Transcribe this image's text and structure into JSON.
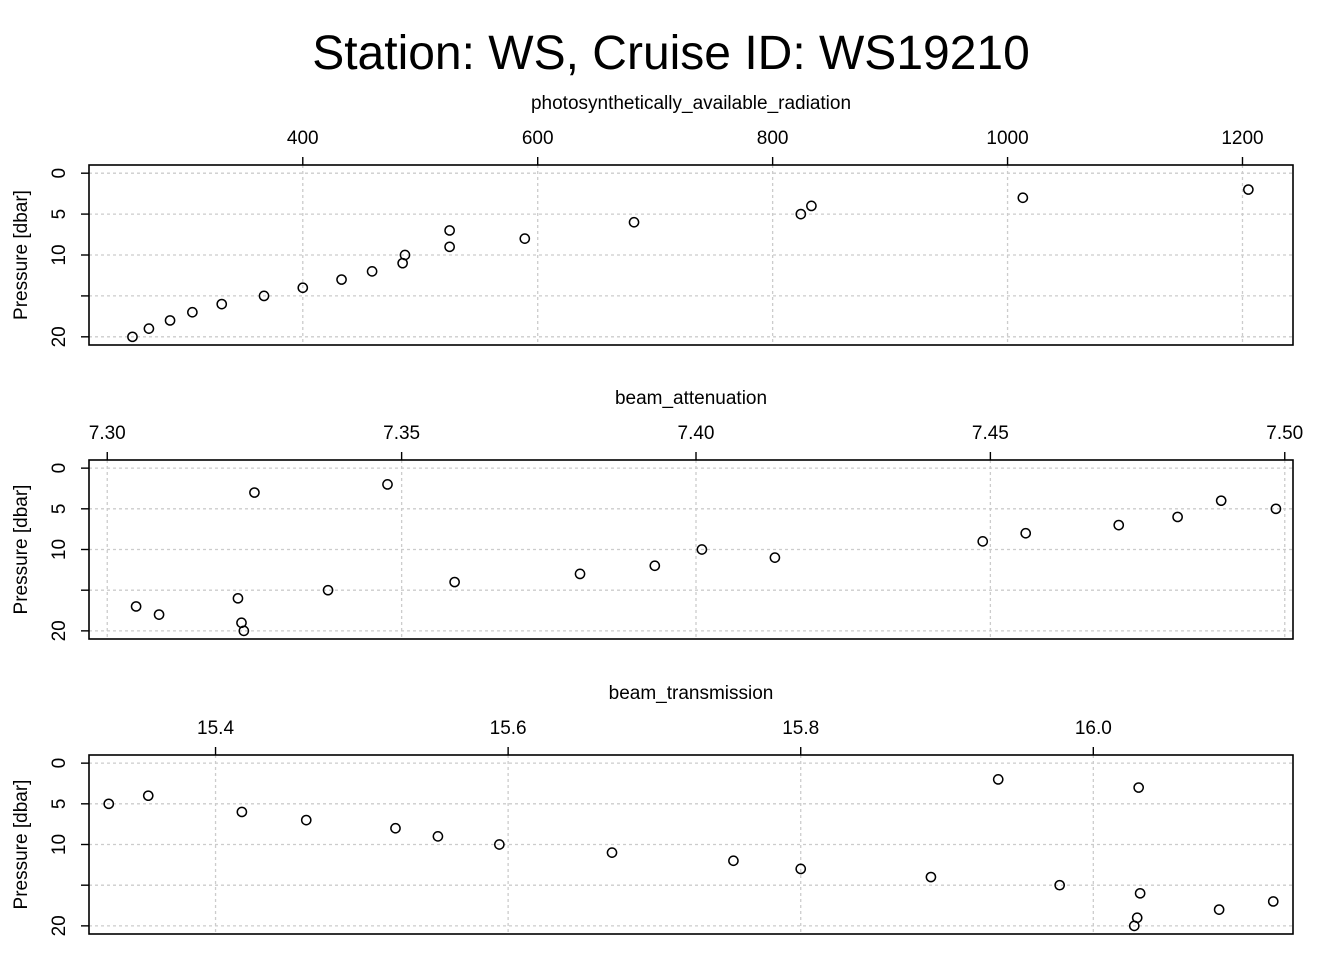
{
  "title": "Station: WS, Cruise ID: WS19210",
  "chart_data": [
    {
      "type": "scatter",
      "xlabel": "photosynthetically_available_radiation",
      "ylabel": "Pressure [dbar]",
      "xlim": [
        218,
        1243
      ],
      "ylim": [
        21,
        -1
      ],
      "xticks": [
        400,
        600,
        800,
        1000,
        1200
      ],
      "xtick_labels": [
        "400",
        "600",
        "800",
        "1000",
        "1200"
      ],
      "yticks": [
        0,
        5,
        10,
        15,
        20
      ],
      "ytick_labels": [
        "0",
        "5",
        "10",
        "",
        "20"
      ],
      "grid": true,
      "points": [
        {
          "x": 1205,
          "y": 2
        },
        {
          "x": 1013,
          "y": 3
        },
        {
          "x": 833,
          "y": 4
        },
        {
          "x": 824,
          "y": 5
        },
        {
          "x": 682,
          "y": 6
        },
        {
          "x": 525,
          "y": 7
        },
        {
          "x": 589,
          "y": 8
        },
        {
          "x": 525,
          "y": 9
        },
        {
          "x": 487,
          "y": 10
        },
        {
          "x": 485,
          "y": 11
        },
        {
          "x": 459,
          "y": 12
        },
        {
          "x": 433,
          "y": 13
        },
        {
          "x": 400,
          "y": 14
        },
        {
          "x": 367,
          "y": 15
        },
        {
          "x": 331,
          "y": 16
        },
        {
          "x": 306,
          "y": 17
        },
        {
          "x": 287,
          "y": 18
        },
        {
          "x": 269,
          "y": 19
        },
        {
          "x": 255,
          "y": 20
        }
      ]
    },
    {
      "type": "scatter",
      "xlabel": "beam_attenuation",
      "ylabel": "Pressure [dbar]",
      "xlim": [
        7.2969,
        7.5014
      ],
      "ylim": [
        21,
        -1
      ],
      "xticks": [
        7.3,
        7.35,
        7.4,
        7.45,
        7.5
      ],
      "xtick_labels": [
        "7.30",
        "7.35",
        "7.40",
        "7.45",
        "7.50"
      ],
      "yticks": [
        0,
        5,
        10,
        15,
        20
      ],
      "ytick_labels": [
        "0",
        "5",
        "10",
        "",
        "20"
      ],
      "grid": true,
      "points": [
        {
          "x": 7.3476,
          "y": 2
        },
        {
          "x": 7.325,
          "y": 3
        },
        {
          "x": 7.4892,
          "y": 4
        },
        {
          "x": 7.4985,
          "y": 5
        },
        {
          "x": 7.4818,
          "y": 6
        },
        {
          "x": 7.4718,
          "y": 7
        },
        {
          "x": 7.456,
          "y": 8
        },
        {
          "x": 7.4487,
          "y": 9
        },
        {
          "x": 7.401,
          "y": 10
        },
        {
          "x": 7.4134,
          "y": 11
        },
        {
          "x": 7.393,
          "y": 12
        },
        {
          "x": 7.3803,
          "y": 13
        },
        {
          "x": 7.359,
          "y": 14
        },
        {
          "x": 7.3375,
          "y": 15
        },
        {
          "x": 7.3222,
          "y": 16
        },
        {
          "x": 7.3049,
          "y": 17
        },
        {
          "x": 7.3088,
          "y": 18
        },
        {
          "x": 7.3228,
          "y": 19
        },
        {
          "x": 7.3232,
          "y": 20
        }
      ]
    },
    {
      "type": "scatter",
      "xlabel": "beam_transmission",
      "ylabel": "Pressure [dbar]",
      "xlim": [
        15.3135,
        16.1365
      ],
      "ylim": [
        21,
        -1
      ],
      "xticks": [
        15.4,
        15.6,
        15.8,
        16.0
      ],
      "xtick_labels": [
        "15.4",
        "15.6",
        "15.8",
        "16.0"
      ],
      "yticks": [
        0,
        5,
        10,
        15,
        20
      ],
      "ytick_labels": [
        "0",
        "5",
        "10",
        "",
        "20"
      ],
      "grid": true,
      "points": [
        {
          "x": 15.935,
          "y": 2
        },
        {
          "x": 16.031,
          "y": 3
        },
        {
          "x": 15.354,
          "y": 4
        },
        {
          "x": 15.327,
          "y": 5
        },
        {
          "x": 15.418,
          "y": 6
        },
        {
          "x": 15.462,
          "y": 7
        },
        {
          "x": 15.523,
          "y": 8
        },
        {
          "x": 15.552,
          "y": 9
        },
        {
          "x": 15.594,
          "y": 10
        },
        {
          "x": 15.671,
          "y": 11
        },
        {
          "x": 15.754,
          "y": 12
        },
        {
          "x": 15.8,
          "y": 13
        },
        {
          "x": 15.889,
          "y": 14
        },
        {
          "x": 15.977,
          "y": 15
        },
        {
          "x": 16.032,
          "y": 16
        },
        {
          "x": 16.123,
          "y": 17
        },
        {
          "x": 16.086,
          "y": 18
        },
        {
          "x": 16.03,
          "y": 19
        },
        {
          "x": 16.028,
          "y": 20
        }
      ]
    }
  ]
}
